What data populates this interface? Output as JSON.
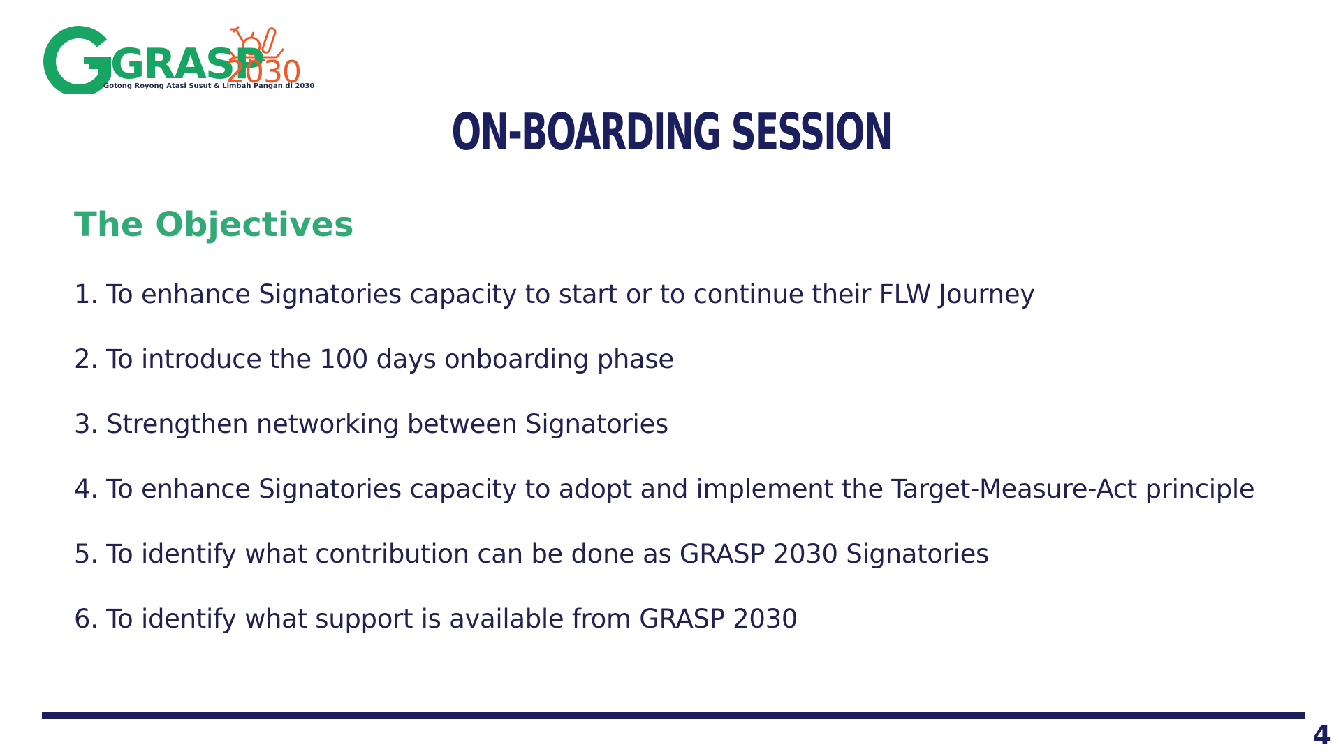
{
  "logo": {
    "brand": "GRASP",
    "year": "2030",
    "tagline": "Gotong Royong Atasi Susut & Limbah Pangan di 2030",
    "colors": {
      "green": "#18a463",
      "orange": "#ee5a2a"
    }
  },
  "slide": {
    "title": "ON-BOARDING SESSION",
    "subtitle": "The Objectives",
    "page_number": "4"
  },
  "objectives": [
    "1. To enhance Signatories capacity to start or to continue their FLW Journey",
    "2. To introduce the 100 days onboarding phase",
    "3. Strengthen networking between Signatories",
    "4. To enhance Signatories capacity to adopt and implement the Target-Measure-Act principle",
    "5. To identify what contribution can be done as GRASP 2030 Signatories",
    "6. To identify what support is available from GRASP 2030"
  ],
  "colors": {
    "navy": "#1b1f5e",
    "teal": "#34a978",
    "text": "#20224f"
  }
}
